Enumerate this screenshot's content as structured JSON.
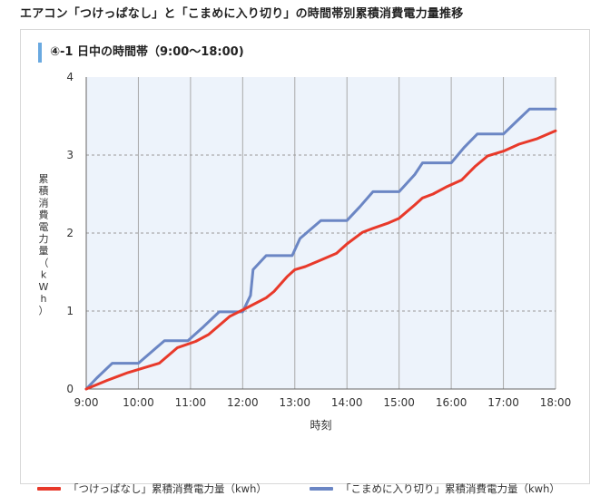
{
  "page": {
    "title": "エアコン「つけっぱなし」と「こまめに入り切り」の時間帯別累積消費電力量推移"
  },
  "panel": {
    "subtitle": "④-1 日中の時間帯（9:00〜18:00)"
  },
  "colors": {
    "series_always_on": "#e8392a",
    "series_on_off": "#6b86c4",
    "plot_bg": "#edf3fb",
    "grid": "#999999"
  },
  "chart_data": {
    "type": "line",
    "title": "④-1 日中の時間帯（9:00〜18:00)",
    "xlabel": "時刻",
    "ylabel": "累積消費電力量（kWh）",
    "ylabel_chars": [
      "累",
      "積",
      "消",
      "費",
      "電",
      "力",
      "量",
      "（",
      "k",
      "W",
      "h",
      "）"
    ],
    "xlim": [
      9,
      18
    ],
    "ylim": [
      0,
      4
    ],
    "x_ticks": [
      "9:00",
      "10:00",
      "11:00",
      "12:00",
      "13:00",
      "14:00",
      "15:00",
      "16:00",
      "17:00",
      "18:00"
    ],
    "y_ticks": [
      "0",
      "1",
      "2",
      "3",
      "4"
    ],
    "grid": true,
    "legend_position": "bottom",
    "series": [
      {
        "name": "「つけっぱなし」累積消費電力量（kwh）",
        "color": "#e8392a",
        "points": [
          [
            9.0,
            0.0
          ],
          [
            9.4,
            0.11
          ],
          [
            9.8,
            0.21
          ],
          [
            10.4,
            0.33
          ],
          [
            10.75,
            0.53
          ],
          [
            11.1,
            0.61
          ],
          [
            11.35,
            0.7
          ],
          [
            11.75,
            0.93
          ],
          [
            12.05,
            1.03
          ],
          [
            12.45,
            1.17
          ],
          [
            12.6,
            1.25
          ],
          [
            12.85,
            1.44
          ],
          [
            13.0,
            1.53
          ],
          [
            13.2,
            1.57
          ],
          [
            13.45,
            1.64
          ],
          [
            13.8,
            1.74
          ],
          [
            14.0,
            1.86
          ],
          [
            14.3,
            2.01
          ],
          [
            14.5,
            2.06
          ],
          [
            14.8,
            2.13
          ],
          [
            15.0,
            2.19
          ],
          [
            15.3,
            2.36
          ],
          [
            15.45,
            2.45
          ],
          [
            15.65,
            2.5
          ],
          [
            15.9,
            2.59
          ],
          [
            16.2,
            2.68
          ],
          [
            16.45,
            2.85
          ],
          [
            16.7,
            2.99
          ],
          [
            17.0,
            3.05
          ],
          [
            17.3,
            3.14
          ],
          [
            17.65,
            3.21
          ],
          [
            18.0,
            3.31
          ]
        ]
      },
      {
        "name": "「こまめに入り切り」累積消費電力量（kwh）",
        "color": "#6b86c4",
        "points": [
          [
            9.0,
            0.0
          ],
          [
            9.2,
            0.14
          ],
          [
            9.5,
            0.33
          ],
          [
            10.0,
            0.33
          ],
          [
            10.5,
            0.62
          ],
          [
            10.95,
            0.62
          ],
          [
            11.25,
            0.8
          ],
          [
            11.55,
            0.99
          ],
          [
            12.0,
            0.99
          ],
          [
            12.15,
            1.2
          ],
          [
            12.2,
            1.53
          ],
          [
            12.45,
            1.71
          ],
          [
            12.95,
            1.71
          ],
          [
            13.1,
            1.93
          ],
          [
            13.5,
            2.16
          ],
          [
            14.0,
            2.16
          ],
          [
            14.25,
            2.34
          ],
          [
            14.5,
            2.53
          ],
          [
            15.0,
            2.53
          ],
          [
            15.3,
            2.75
          ],
          [
            15.45,
            2.9
          ],
          [
            16.0,
            2.9
          ],
          [
            16.25,
            3.1
          ],
          [
            16.5,
            3.27
          ],
          [
            17.0,
            3.27
          ],
          [
            17.25,
            3.43
          ],
          [
            17.5,
            3.59
          ],
          [
            18.0,
            3.59
          ]
        ]
      }
    ]
  }
}
